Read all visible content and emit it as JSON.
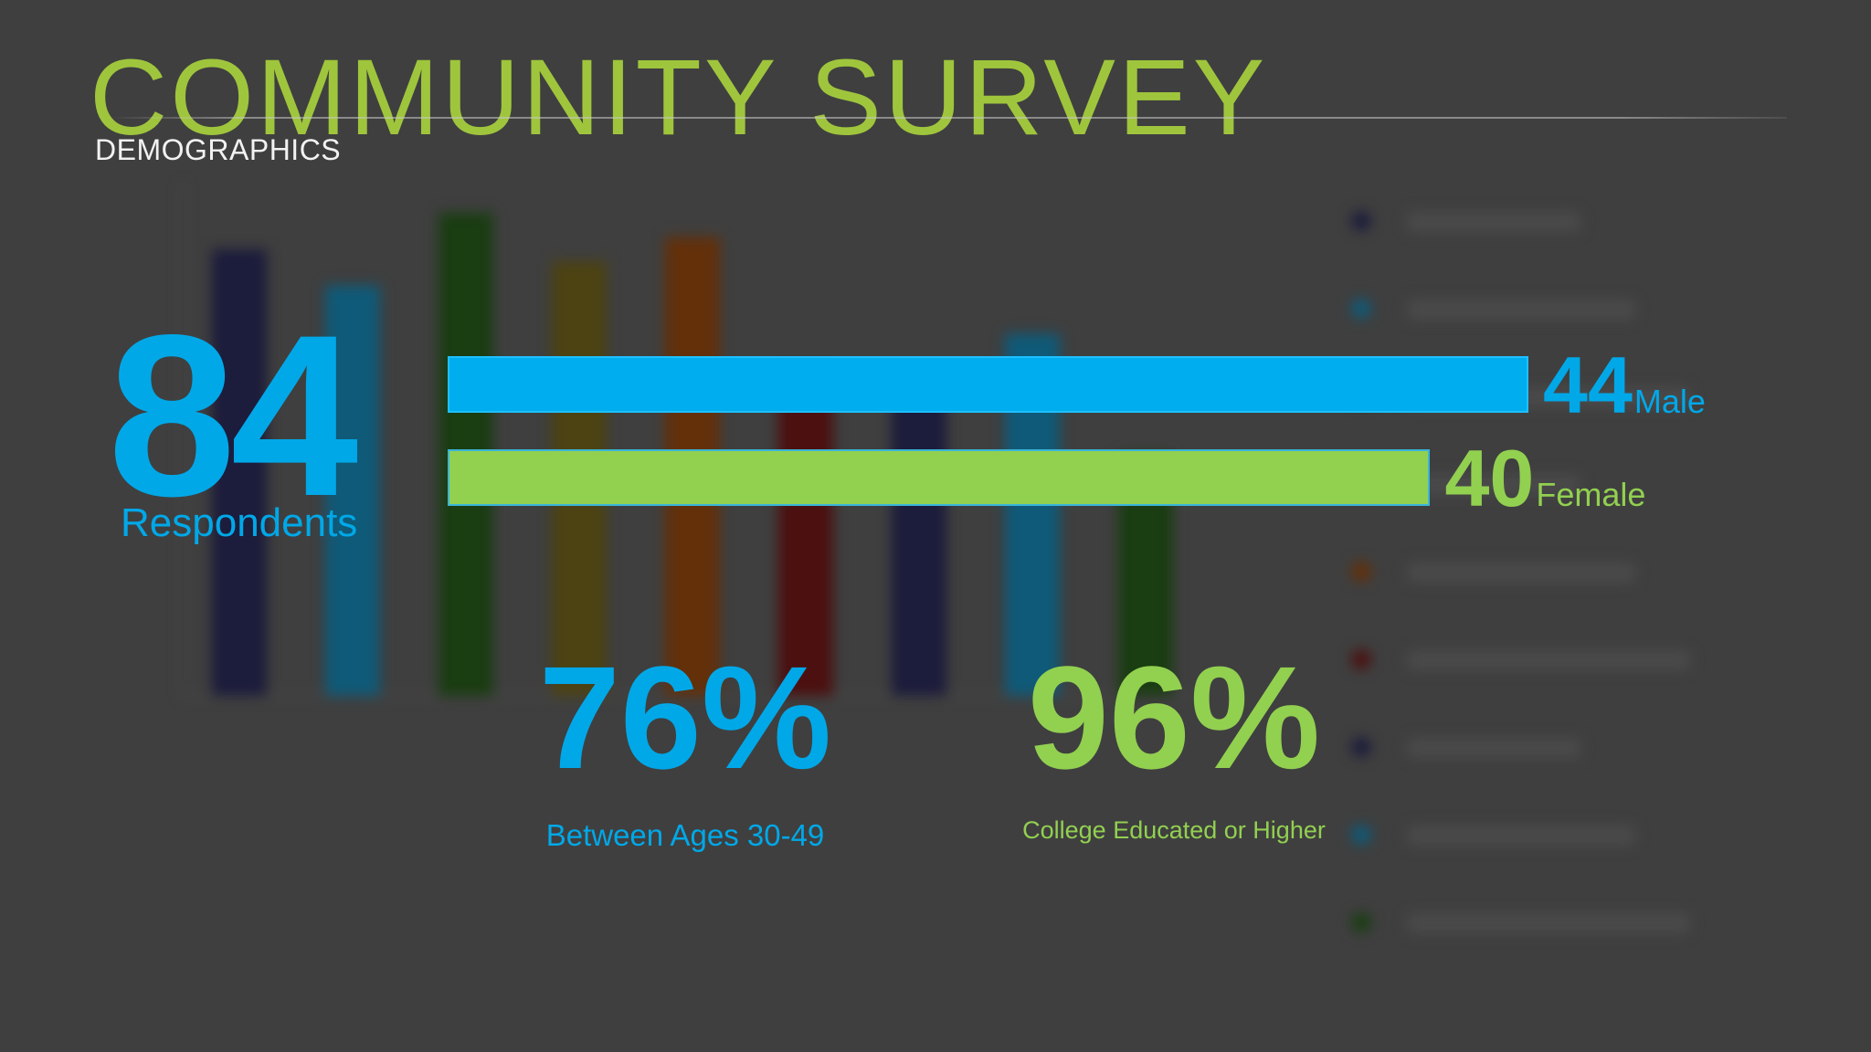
{
  "slide": {
    "title": "COMMUNITY SURVEY",
    "subtitle": "DEMOGRAPHICS"
  },
  "respondents": {
    "value": "84",
    "label": "Respondents"
  },
  "stats": {
    "age": {
      "value": "76%",
      "label": "Between Ages 30-49"
    },
    "education": {
      "value": "96%",
      "label": "College Educated or Higher"
    }
  },
  "colors": {
    "blue": "#00a8e8",
    "green": "#92d050",
    "title_green": "#9fc53d",
    "background": "#3f3f3f"
  },
  "chart_data": [
    {
      "type": "bar",
      "orientation": "horizontal",
      "categories": [
        "Male",
        "Female"
      ],
      "values": [
        44,
        40
      ],
      "value_labels": [
        "44",
        "40"
      ],
      "colors": [
        "#00adee",
        "#92d050"
      ],
      "xlim": [
        0,
        48.6
      ],
      "grid": false
    },
    {
      "type": "bar",
      "note_visible": "blurred background chart (illegible)",
      "series": [
        {
          "values": [
            74,
            68,
            80,
            72,
            76,
            54,
            50,
            60,
            40
          ]
        }
      ],
      "colors": [
        "#1c1c3c",
        "#0f5a78",
        "#1a3d12",
        "#4c4212",
        "#63300a",
        "#4c1010",
        "#1c1c3c",
        "#0f5a78",
        "#1a3d12"
      ],
      "ylim": [
        0,
        85
      ],
      "grid": false
    }
  ]
}
